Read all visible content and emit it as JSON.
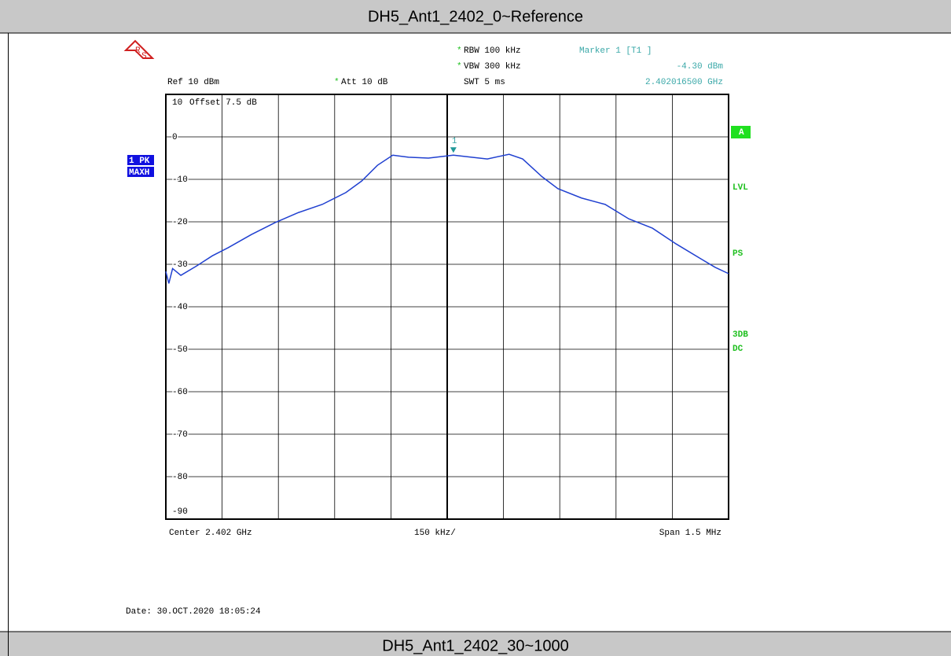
{
  "header": {
    "title": "DH5_Ant1_2402_0~Reference"
  },
  "footer": {
    "title": "DH5_Ant1_2402_30~1000"
  },
  "chart_data": {
    "type": "line",
    "x": [
      2401.25,
      2401.258,
      2401.268,
      2401.29,
      2401.332,
      2401.374,
      2401.416,
      2401.478,
      2401.541,
      2401.604,
      2401.667,
      2401.73,
      2401.772,
      2401.814,
      2401.855,
      2401.897,
      2401.95,
      2402.0165,
      2402.065,
      2402.107,
      2402.165,
      2402.201,
      2402.253,
      2402.295,
      2402.358,
      2402.421,
      2402.484,
      2402.547,
      2402.61,
      2402.672,
      2402.714,
      2402.75
    ],
    "series": [
      {
        "name": "1 PK",
        "color": "#2040d0",
        "values": [
          -31.7,
          -34.5,
          -31,
          -32.6,
          -30.4,
          -28,
          -26.1,
          -23,
          -20.2,
          -17.8,
          -15.9,
          -13.1,
          -10.4,
          -6.7,
          -4.3,
          -4.8,
          -5,
          -4.3,
          -4.8,
          -5.2,
          -4.1,
          -5.2,
          -9.4,
          -12.2,
          -14.4,
          -15.9,
          -19.3,
          -21.5,
          -25.2,
          -28.5,
          -30.7,
          -32.2
        ]
      }
    ],
    "xlim": [
      2401.25,
      2402.75
    ],
    "ylim": [
      -90,
      10
    ],
    "yticks": [
      10,
      0,
      -10,
      -20,
      -30,
      -40,
      -50,
      -60,
      -70,
      -80,
      -90
    ],
    "grid": true,
    "offset_label": "Offset 7.5 dB",
    "settings": [
      {
        "mark": "*",
        "text": "RBW 100 kHz"
      },
      {
        "mark": "*",
        "text": "VBW 300 kHz"
      },
      {
        "text": "SWT 5 ms"
      },
      {
        "text": "Ref 10 dBm"
      },
      {
        "mark": "*",
        "text": "Att 10 dB"
      }
    ],
    "marker": {
      "label": "1",
      "x": 2402.0165,
      "y": -4.3,
      "title": "Marker 1 [T1 ]",
      "value_label": "-4.30 dBm",
      "freq_label": "2.402016500 GHz"
    },
    "trace_labels": [
      "1 PK",
      "MAXH"
    ],
    "side_labels": [
      "A",
      "LVL",
      "PS",
      "3DB",
      "DC"
    ],
    "x_labels": [
      "Center 2.402 GHz",
      "150 kHz/",
      "Span 1.5 MHz"
    ],
    "date": "Date: 30.OCT.2020 18:05:24"
  }
}
